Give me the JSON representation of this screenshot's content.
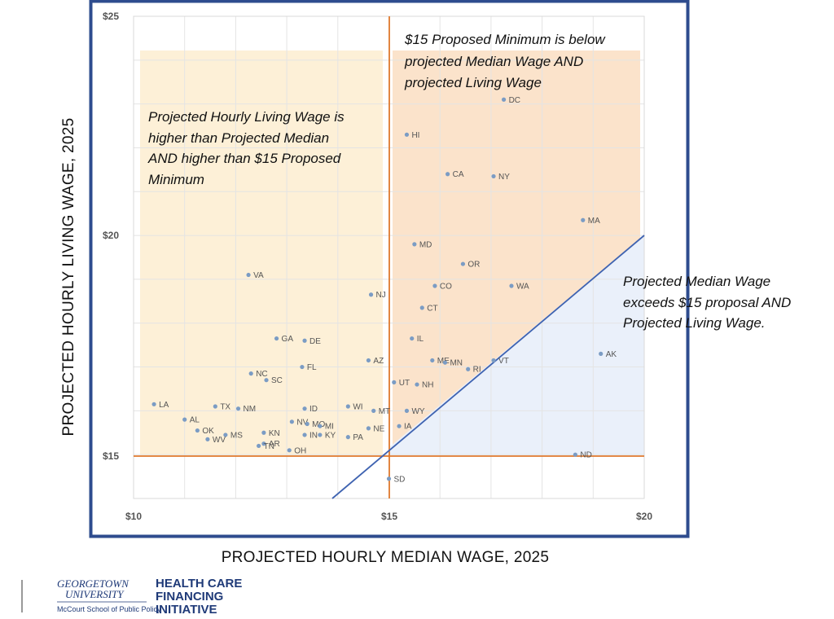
{
  "chart_data": {
    "type": "scatter",
    "xlabel": "PROJECTED HOURLY MEDIAN WAGE, 2025",
    "ylabel": "PROJECTED HOURLY LIVING WAGE, 2025",
    "xlim": [
      10,
      20
    ],
    "ylim": [
      14,
      25
    ],
    "x_ticks": [
      {
        "value": 10,
        "label": "$10"
      },
      {
        "value": 15,
        "label": "$15"
      },
      {
        "value": 20,
        "label": "$20"
      }
    ],
    "y_ticks": [
      {
        "value": 15,
        "label": "$15"
      },
      {
        "value": 20,
        "label": "$20"
      },
      {
        "value": 25,
        "label": "$25"
      }
    ],
    "grid": true,
    "reference_lines": {
      "proposed_minimum": 15,
      "diagonal": "median equals living wage"
    },
    "colors": {
      "point": "#7b9cc4",
      "reference_line": "#e07a2e",
      "diagonal": "#3f63b1",
      "frame": "#2e4c8e",
      "zone_left": "#fdf0d7",
      "zone_top": "#fbe3cb",
      "zone_bottom": "#eaf0fa"
    },
    "annotations": {
      "left_zone": [
        "Projected Hourly Living Wage is",
        "higher than Projected Median",
        "AND higher than $15 Proposed",
        "Minimum"
      ],
      "top_zone": [
        "$15 Proposed Minimum is below",
        "projected Median Wage AND",
        "projected Living Wage"
      ],
      "right_zone": [
        "Projected Median Wage",
        "exceeds  $15 proposal AND",
        "Projected Living Wage."
      ]
    },
    "points": [
      {
        "state": "DC",
        "x": 17.25,
        "y": 23.1
      },
      {
        "state": "HI",
        "x": 15.35,
        "y": 22.3
      },
      {
        "state": "CA",
        "x": 16.15,
        "y": 21.4
      },
      {
        "state": "NY",
        "x": 17.05,
        "y": 21.35
      },
      {
        "state": "MA",
        "x": 18.8,
        "y": 20.35
      },
      {
        "state": "MD",
        "x": 15.5,
        "y": 19.8
      },
      {
        "state": "OR",
        "x": 16.45,
        "y": 19.35
      },
      {
        "state": "VA",
        "x": 12.25,
        "y": 19.1
      },
      {
        "state": "CO",
        "x": 15.9,
        "y": 18.85
      },
      {
        "state": "WA",
        "x": 17.4,
        "y": 18.85
      },
      {
        "state": "NJ",
        "x": 14.65,
        "y": 18.65
      },
      {
        "state": "CT",
        "x": 15.65,
        "y": 18.35
      },
      {
        "state": "GA",
        "x": 12.8,
        "y": 17.65
      },
      {
        "state": "DE",
        "x": 13.35,
        "y": 17.6
      },
      {
        "state": "IL",
        "x": 15.45,
        "y": 17.65
      },
      {
        "state": "ME",
        "x": 15.85,
        "y": 17.15
      },
      {
        "state": "MN",
        "x": 16.1,
        "y": 17.1
      },
      {
        "state": "AK",
        "x": 19.15,
        "y": 17.3
      },
      {
        "state": "AZ",
        "x": 14.6,
        "y": 17.15
      },
      {
        "state": "VT",
        "x": 17.05,
        "y": 17.15
      },
      {
        "state": "RI",
        "x": 16.55,
        "y": 16.95
      },
      {
        "state": "FL",
        "x": 13.3,
        "y": 17.0
      },
      {
        "state": "NC",
        "x": 12.3,
        "y": 16.85
      },
      {
        "state": "SC",
        "x": 12.6,
        "y": 16.7
      },
      {
        "state": "UT",
        "x": 15.1,
        "y": 16.65
      },
      {
        "state": "NH",
        "x": 15.55,
        "y": 16.6
      },
      {
        "state": "LA",
        "x": 10.4,
        "y": 16.15
      },
      {
        "state": "TX",
        "x": 11.6,
        "y": 16.1
      },
      {
        "state": "NM",
        "x": 12.05,
        "y": 16.05
      },
      {
        "state": "ID",
        "x": 13.35,
        "y": 16.05
      },
      {
        "state": "WI",
        "x": 14.2,
        "y": 16.1
      },
      {
        "state": "MT",
        "x": 14.7,
        "y": 16.0
      },
      {
        "state": "WY",
        "x": 15.35,
        "y": 16.0
      },
      {
        "state": "AL",
        "x": 11.0,
        "y": 15.8
      },
      {
        "state": "NV",
        "x": 13.1,
        "y": 15.75
      },
      {
        "state": "MO",
        "x": 13.4,
        "y": 15.7
      },
      {
        "state": "MI",
        "x": 13.65,
        "y": 15.65
      },
      {
        "state": "OK",
        "x": 11.25,
        "y": 15.55
      },
      {
        "state": "KN",
        "x": 12.55,
        "y": 15.5
      },
      {
        "state": "KY",
        "x": 13.65,
        "y": 15.45
      },
      {
        "state": "IN",
        "x": 13.35,
        "y": 15.45
      },
      {
        "state": "NE",
        "x": 14.6,
        "y": 15.6
      },
      {
        "state": "IA",
        "x": 15.2,
        "y": 15.65
      },
      {
        "state": "MS",
        "x": 11.8,
        "y": 15.45
      },
      {
        "state": "WV",
        "x": 11.45,
        "y": 15.35
      },
      {
        "state": "PA",
        "x": 14.2,
        "y": 15.4
      },
      {
        "state": "AR",
        "x": 12.55,
        "y": 15.25
      },
      {
        "state": "TN",
        "x": 12.45,
        "y": 15.2
      },
      {
        "state": "OH",
        "x": 13.05,
        "y": 15.1
      },
      {
        "state": "ND",
        "x": 18.65,
        "y": 15.0
      },
      {
        "state": "SD",
        "x": 15.0,
        "y": 14.45
      }
    ]
  },
  "logo": {
    "university_line1": "GEORGETOWN",
    "university_line2": "UNIVERSITY",
    "school": "McCourt School of Public Policy",
    "initiative_line1": "HEALTH CARE",
    "initiative_line2": "FINANCING",
    "initiative_line3": "INITIATIVE"
  }
}
